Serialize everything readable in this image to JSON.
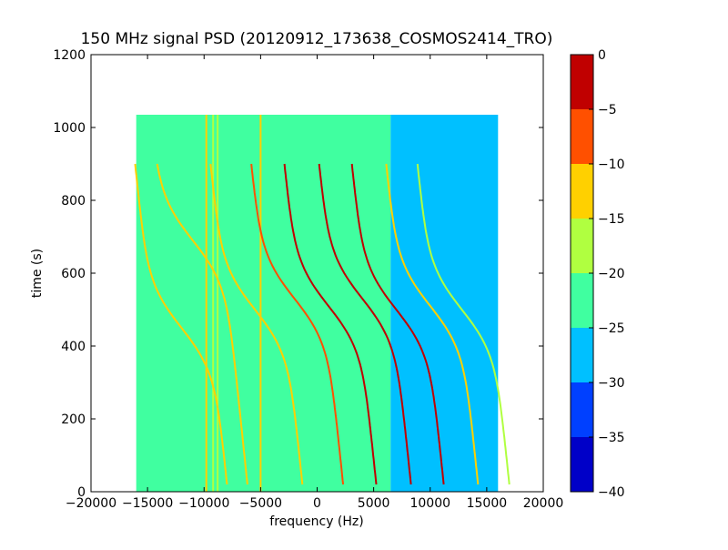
{
  "chart_data": {
    "type": "heatmap",
    "title": "150 MHz signal PSD (20120912_173638_COSMOS2414_TRO)",
    "xlabel": "frequency (Hz)",
    "ylabel": "time (s)",
    "xlim": [
      -20000,
      20000
    ],
    "ylim": [
      0,
      1200
    ],
    "xticks": [
      -20000,
      -15000,
      -10000,
      -5000,
      0,
      5000,
      10000,
      15000,
      20000
    ],
    "xtick_labels": [
      "−20000",
      "−15000",
      "−10000",
      "−5000",
      "0",
      "5000",
      "10000",
      "15000",
      "20000"
    ],
    "yticks": [
      0,
      200,
      400,
      600,
      800,
      1000,
      1200
    ],
    "ytick_labels": [
      "0",
      "200",
      "400",
      "600",
      "800",
      "1000",
      "1200"
    ],
    "data_extent": {
      "freq": [
        -16000,
        16000
      ],
      "time": [
        0,
        1035
      ]
    },
    "noise_floor": [
      {
        "freq_range": [
          -16000,
          6500
        ],
        "level": -22.5
      },
      {
        "freq_range": [
          6500,
          16000
        ],
        "level": -27.5
      }
    ],
    "vertical_lines": [
      {
        "freq": -9800,
        "level": -12
      },
      {
        "freq": -9200,
        "level": -15
      },
      {
        "freq": -8800,
        "level": -17
      },
      {
        "freq": -5000,
        "level": -12
      }
    ],
    "doppler_traces": [
      {
        "center_freq": -12000,
        "center_time": 450,
        "level": -12
      },
      {
        "center_freq": -5500,
        "center_time": 500,
        "level": -10
      },
      {
        "center_freq": -2000,
        "center_time": 530,
        "level": -5
      },
      {
        "center_freq": 1000,
        "center_time": 510,
        "level": -3
      },
      {
        "center_freq": 4000,
        "center_time": 530,
        "level": -3
      },
      {
        "center_freq": 7000,
        "center_time": 500,
        "level": -3
      },
      {
        "center_freq": 10000,
        "center_time": 510,
        "level": -12
      },
      {
        "center_freq": 12800,
        "center_time": 500,
        "level": -17
      },
      {
        "center_freq": -11000,
        "center_time": 690,
        "level": -12
      }
    ],
    "colorbar": {
      "levels": [
        -40,
        -35,
        -30,
        -25,
        -20,
        -15,
        -10,
        -5,
        0
      ],
      "tick_labels": [
        "−40",
        "−35",
        "−30",
        "−25",
        "−20",
        "−15",
        "−10",
        "−5",
        "0"
      ],
      "colors": [
        "#0000c8",
        "#0040ff",
        "#00c0ff",
        "#40ffa0",
        "#b0ff40",
        "#ffd000",
        "#ff5000",
        "#c00000"
      ]
    },
    "grid": false
  }
}
